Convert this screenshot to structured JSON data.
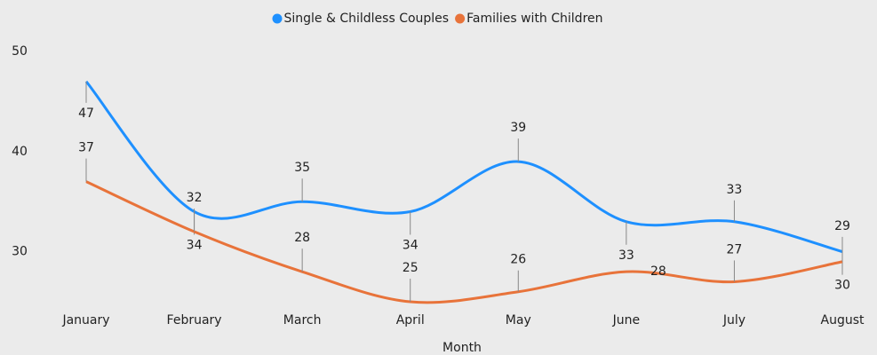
{
  "chart_data": {
    "type": "line",
    "smooth": true,
    "x_label": "Month",
    "categories": [
      "January",
      "February",
      "March",
      "April",
      "May",
      "June",
      "July",
      "August"
    ],
    "series": [
      {
        "name": "Single & Childless Couples",
        "color": "#1e90ff",
        "values": [
          47,
          34,
          35,
          34,
          39,
          33,
          33,
          30
        ]
      },
      {
        "name": "Families with Children",
        "color": "#e8733a",
        "values": [
          37,
          32,
          28,
          25,
          26,
          28,
          27,
          29
        ]
      }
    ],
    "ylim": [
      25,
      50
    ],
    "yticks": [
      30,
      40,
      50
    ],
    "grid": false,
    "legend": "top"
  }
}
